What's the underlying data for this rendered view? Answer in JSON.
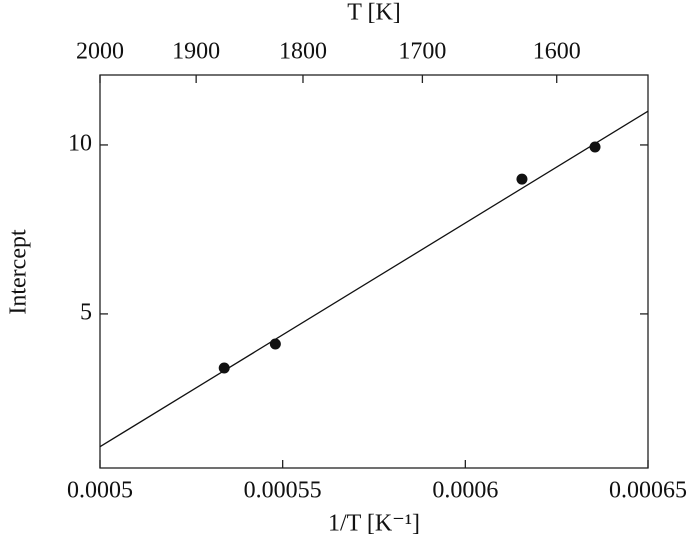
{
  "chart_data": {
    "type": "scatter",
    "x_label": "1/T [K⁻¹]",
    "y_label": "Intercept",
    "x2_label": "T [K]",
    "xlim": [
      0.0005,
      0.00065
    ],
    "xticks": [
      0.0005,
      0.00055,
      0.0006,
      0.00065
    ],
    "ylim": [
      0.44,
      12.07
    ],
    "yticks": [
      5,
      10
    ],
    "x2lim": [
      2000,
      1538.5
    ],
    "x2ticks": [
      2000,
      1900,
      1800,
      1700,
      1600
    ],
    "points": {
      "color": "#111111",
      "x": [
        0.000534,
        0.000548,
        0.0006155,
        0.0006355
      ],
      "y": [
        3.4,
        4.11,
        8.99,
        9.94
      ]
    },
    "fit_line": {
      "color": "#111111",
      "x": [
        0.0005,
        0.00065
      ],
      "y": [
        1.07,
        11.0
      ]
    }
  }
}
